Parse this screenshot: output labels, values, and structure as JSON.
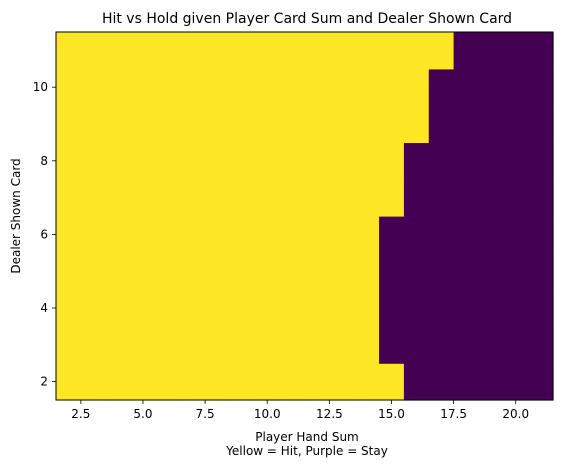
{
  "chart_data": {
    "type": "heatmap",
    "title": "Hit vs Hold given Player Card Sum and Dealer Shown Card",
    "xlabel": "Player Hand Sum",
    "ylabel": "Dealer Shown Card",
    "caption": "Yellow = Hit, Purple = Stay",
    "x_categories": [
      2,
      3,
      4,
      5,
      6,
      7,
      8,
      9,
      10,
      11,
      12,
      13,
      14,
      15,
      16,
      17,
      18,
      19,
      20,
      21
    ],
    "y_categories": [
      2,
      3,
      4,
      5,
      6,
      7,
      8,
      9,
      10,
      11
    ],
    "xlim": [
      1.5,
      21.5
    ],
    "ylim": [
      1.5,
      11.5
    ],
    "x_ticks": [
      2.5,
      5.0,
      7.5,
      10.0,
      12.5,
      15.0,
      17.5,
      20.0
    ],
    "x_tick_labels": [
      "2.5",
      "5.0",
      "7.5",
      "10.0",
      "12.5",
      "15.0",
      "17.5",
      "20.0"
    ],
    "y_ticks": [
      2,
      4,
      6,
      8,
      10
    ],
    "y_tick_labels": [
      "2",
      "4",
      "6",
      "8",
      "10"
    ],
    "value_meaning": {
      "1": "Hit",
      "0": "Stay"
    },
    "colors": {
      "hit": "#fde725",
      "stay": "#440154"
    },
    "stay_threshold_by_dealer_card": [
      {
        "dealer_card": 2,
        "stay_from_player_sum": 16
      },
      {
        "dealer_card": 3,
        "stay_from_player_sum": 15
      },
      {
        "dealer_card": 4,
        "stay_from_player_sum": 15
      },
      {
        "dealer_card": 5,
        "stay_from_player_sum": 15
      },
      {
        "dealer_card": 6,
        "stay_from_player_sum": 15
      },
      {
        "dealer_card": 7,
        "stay_from_player_sum": 16
      },
      {
        "dealer_card": 8,
        "stay_from_player_sum": 16
      },
      {
        "dealer_card": 9,
        "stay_from_player_sum": 17
      },
      {
        "dealer_card": 10,
        "stay_from_player_sum": 17
      },
      {
        "dealer_card": 11,
        "stay_from_player_sum": 18
      }
    ]
  }
}
